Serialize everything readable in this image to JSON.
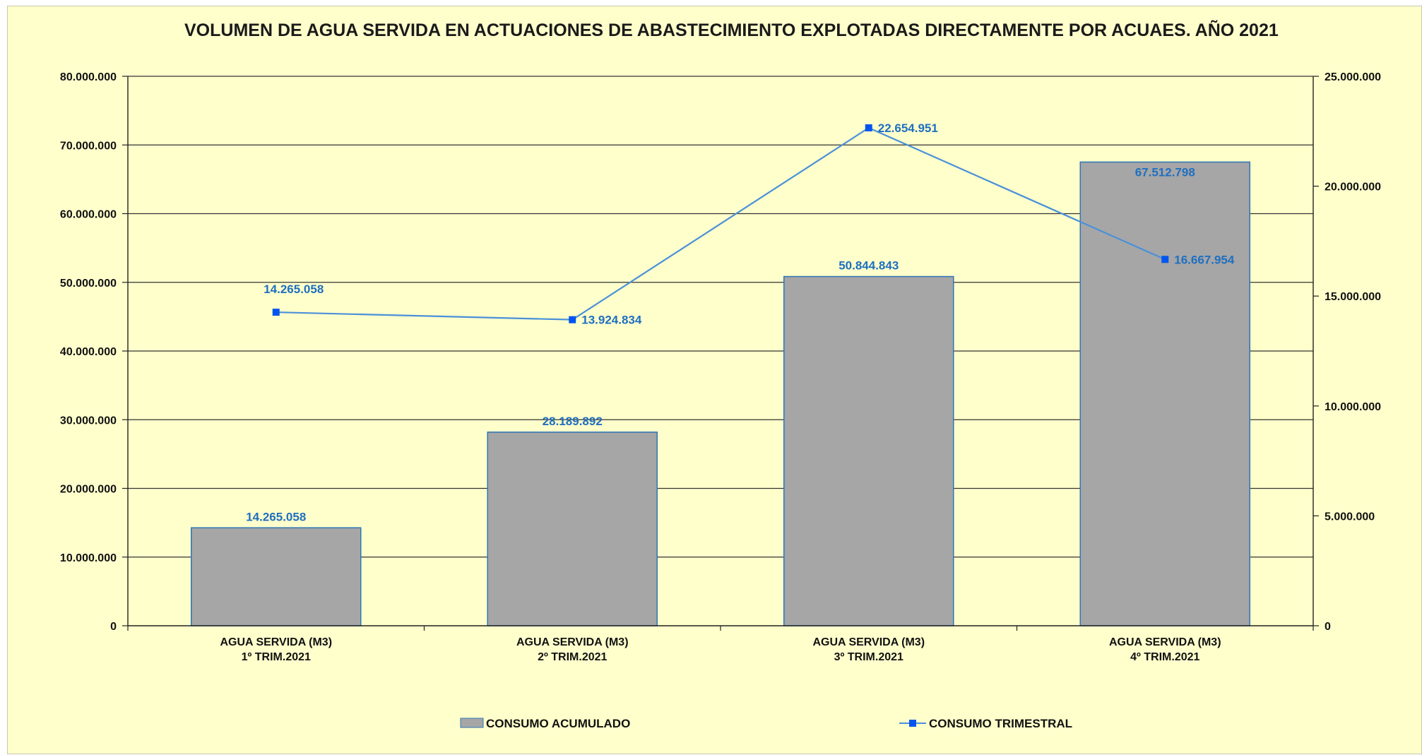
{
  "chart_data": {
    "type": "bar",
    "title": "VOLUMEN DE AGUA SERVIDA EN ACTUACIONES DE ABASTECIMIENTO EXPLOTADAS DIRECTAMENTE POR ACUAES. AÑO 2021",
    "categories": [
      [
        "AGUA SERVIDA (M3)",
        "1º TRIM.2021"
      ],
      [
        "AGUA SERVIDA (M3)",
        "2º TRIM.2021"
      ],
      [
        "AGUA SERVIDA (M3)",
        "3º TRIM.2021"
      ],
      [
        "AGUA SERVIDA (M3)",
        "4º TRIM.2021"
      ]
    ],
    "series": [
      {
        "name": "CONSUMO ACUMULADO",
        "type": "bar",
        "axis": "left",
        "values": [
          14265058,
          28189892,
          50844843,
          67512798
        ],
        "labels": [
          "14.265.058",
          "28.189.892",
          "50.844.843",
          "67.512.798"
        ]
      },
      {
        "name": "CONSUMO TRIMESTRAL",
        "type": "line",
        "axis": "right",
        "values": [
          14265058,
          13924834,
          22654951,
          16667954
        ],
        "labels": [
          "14.265.058",
          "13.924.834",
          "22.654.951",
          "16.667.954"
        ]
      }
    ],
    "y_left": {
      "ylim": [
        0,
        80000000
      ],
      "ticks": [
        "0",
        "10.000.000",
        "20.000.000",
        "30.000.000",
        "40.000.000",
        "50.000.000",
        "60.000.000",
        "70.000.000",
        "80.000.000"
      ]
    },
    "y_right": {
      "ylim": [
        0,
        25000000
      ],
      "ticks": [
        "0",
        "5.000.000",
        "10.000.000",
        "15.000.000",
        "20.000.000",
        "25.000.000"
      ]
    },
    "grid": true,
    "legend": "bottom",
    "colors": {
      "background": "#ffffcc",
      "bar_fill": "#a6a6a6",
      "bar_stroke": "#2e75b6",
      "line": "#4a90d9",
      "marker": "#0055ee",
      "data_label": "#1f6fc0",
      "grid": "#333333"
    }
  }
}
